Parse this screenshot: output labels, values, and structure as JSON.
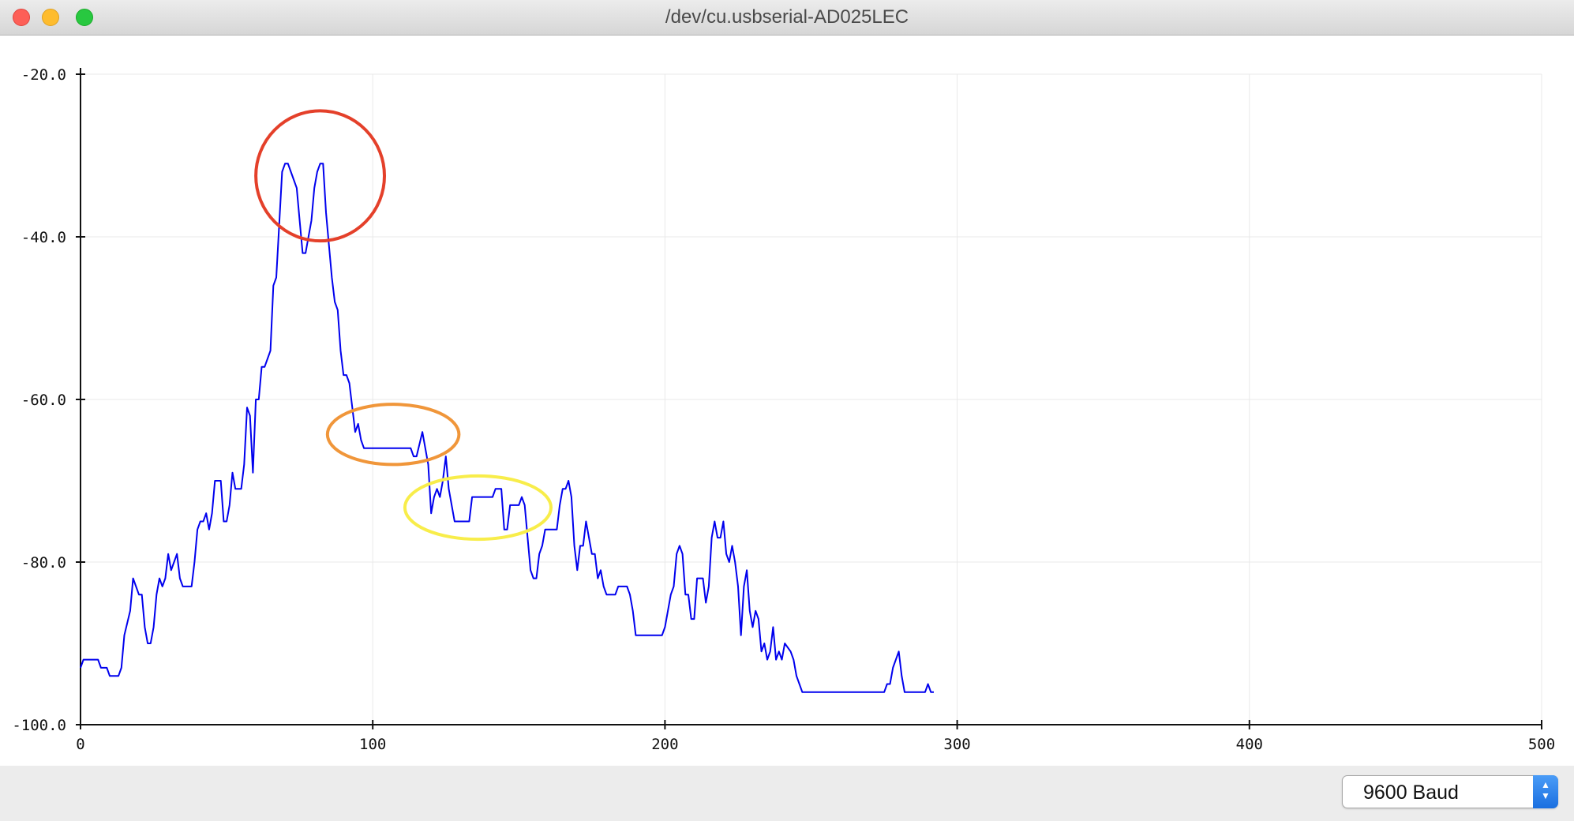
{
  "window": {
    "title": "/dev/cu.usbserial-AD025LEC"
  },
  "footer": {
    "baud_rate": "9600 Baud"
  },
  "icons": {
    "close": "close-dot",
    "minimize": "minimize-dot",
    "zoom": "zoom-dot",
    "stepper": "up-down-chevron-icon"
  },
  "colors": {
    "series": "#0000ee",
    "red_circle": "#e4402a",
    "orange_ellipse": "#f0963a",
    "yellow_ellipse": "#f8ed4a"
  },
  "chart_data": {
    "type": "line",
    "title": "",
    "xlabel": "",
    "ylabel": "",
    "xlim": [
      0,
      500
    ],
    "ylim": [
      -100,
      -20
    ],
    "x_ticks": [
      "0",
      "100",
      "200",
      "300",
      "400",
      "500"
    ],
    "y_ticks": [
      "-20.0",
      "-40.0",
      "-60.0",
      "-80.0",
      "-100.0"
    ],
    "grid": true,
    "series": [
      {
        "points": [
          [
            0,
            -93
          ],
          [
            1,
            -92
          ],
          [
            3,
            -92
          ],
          [
            6,
            -92
          ],
          [
            7,
            -93
          ],
          [
            9,
            -93
          ],
          [
            10,
            -94
          ],
          [
            13,
            -94
          ],
          [
            14,
            -93
          ],
          [
            15,
            -89
          ],
          [
            17,
            -86
          ],
          [
            18,
            -82
          ],
          [
            19,
            -83
          ],
          [
            20,
            -84
          ],
          [
            21,
            -84
          ],
          [
            22,
            -88
          ],
          [
            23,
            -90
          ],
          [
            24,
            -90
          ],
          [
            25,
            -88
          ],
          [
            26,
            -84
          ],
          [
            27,
            -82
          ],
          [
            28,
            -83
          ],
          [
            29,
            -82
          ],
          [
            30,
            -79
          ],
          [
            31,
            -81
          ],
          [
            32,
            -80
          ],
          [
            33,
            -79
          ],
          [
            34,
            -82
          ],
          [
            35,
            -83
          ],
          [
            38,
            -83
          ],
          [
            39,
            -80
          ],
          [
            40,
            -76
          ],
          [
            41,
            -75
          ],
          [
            42,
            -75
          ],
          [
            43,
            -74
          ],
          [
            44,
            -76
          ],
          [
            45,
            -74
          ],
          [
            46,
            -70
          ],
          [
            48,
            -70
          ],
          [
            49,
            -75
          ],
          [
            50,
            -75
          ],
          [
            51,
            -73
          ],
          [
            52,
            -69
          ],
          [
            53,
            -71
          ],
          [
            55,
            -71
          ],
          [
            56,
            -68
          ],
          [
            57,
            -61
          ],
          [
            58,
            -62
          ],
          [
            59,
            -69
          ],
          [
            60,
            -60
          ],
          [
            61,
            -60
          ],
          [
            62,
            -56
          ],
          [
            63,
            -56
          ],
          [
            64,
            -55
          ],
          [
            65,
            -54
          ],
          [
            66,
            -46
          ],
          [
            67,
            -45
          ],
          [
            69,
            -32
          ],
          [
            70,
            -31
          ],
          [
            71,
            -31
          ],
          [
            72,
            -32
          ],
          [
            73,
            -33
          ],
          [
            74,
            -34
          ],
          [
            75,
            -38
          ],
          [
            76,
            -42
          ],
          [
            77,
            -42
          ],
          [
            78,
            -40
          ],
          [
            79,
            -38
          ],
          [
            80,
            -34
          ],
          [
            81,
            -32
          ],
          [
            82,
            -31
          ],
          [
            83,
            -31
          ],
          [
            84,
            -37
          ],
          [
            86,
            -45
          ],
          [
            87,
            -48
          ],
          [
            88,
            -49
          ],
          [
            89,
            -54
          ],
          [
            90,
            -57
          ],
          [
            91,
            -57
          ],
          [
            92,
            -58
          ],
          [
            93,
            -61
          ],
          [
            94,
            -64
          ],
          [
            95,
            -63
          ],
          [
            96,
            -65
          ],
          [
            97,
            -66
          ],
          [
            113,
            -66
          ],
          [
            114,
            -67
          ],
          [
            115,
            -67
          ],
          [
            117,
            -64
          ],
          [
            118,
            -66
          ],
          [
            119,
            -68
          ],
          [
            120,
            -74
          ],
          [
            121,
            -72
          ],
          [
            122,
            -71
          ],
          [
            123,
            -72
          ],
          [
            124,
            -70
          ],
          [
            125,
            -67
          ],
          [
            126,
            -71
          ],
          [
            127,
            -73
          ],
          [
            128,
            -75
          ],
          [
            133,
            -75
          ],
          [
            134,
            -72
          ],
          [
            141,
            -72
          ],
          [
            142,
            -71
          ],
          [
            144,
            -71
          ],
          [
            145,
            -76
          ],
          [
            146,
            -76
          ],
          [
            147,
            -73
          ],
          [
            150,
            -73
          ],
          [
            151,
            -72
          ],
          [
            152,
            -73
          ],
          [
            153,
            -77
          ],
          [
            154,
            -81
          ],
          [
            155,
            -82
          ],
          [
            156,
            -82
          ],
          [
            157,
            -79
          ],
          [
            158,
            -78
          ],
          [
            159,
            -76
          ],
          [
            163,
            -76
          ],
          [
            164,
            -73
          ],
          [
            165,
            -71
          ],
          [
            166,
            -71
          ],
          [
            167,
            -70
          ],
          [
            168,
            -72
          ],
          [
            169,
            -78
          ],
          [
            170,
            -81
          ],
          [
            171,
            -78
          ],
          [
            172,
            -78
          ],
          [
            173,
            -75
          ],
          [
            174,
            -77
          ],
          [
            175,
            -79
          ],
          [
            176,
            -79
          ],
          [
            177,
            -82
          ],
          [
            178,
            -81
          ],
          [
            179,
            -83
          ],
          [
            180,
            -84
          ],
          [
            183,
            -84
          ],
          [
            184,
            -83
          ],
          [
            187,
            -83
          ],
          [
            188,
            -84
          ],
          [
            189,
            -86
          ],
          [
            190,
            -89
          ],
          [
            199,
            -89
          ],
          [
            200,
            -88
          ],
          [
            201,
            -86
          ],
          [
            202,
            -84
          ],
          [
            203,
            -83
          ],
          [
            204,
            -79
          ],
          [
            205,
            -78
          ],
          [
            206,
            -79
          ],
          [
            207,
            -84
          ],
          [
            208,
            -84
          ],
          [
            209,
            -87
          ],
          [
            210,
            -87
          ],
          [
            211,
            -82
          ],
          [
            213,
            -82
          ],
          [
            214,
            -85
          ],
          [
            215,
            -83
          ],
          [
            216,
            -77
          ],
          [
            217,
            -75
          ],
          [
            218,
            -77
          ],
          [
            219,
            -77
          ],
          [
            220,
            -75
          ],
          [
            221,
            -79
          ],
          [
            222,
            -80
          ],
          [
            223,
            -78
          ],
          [
            224,
            -80
          ],
          [
            225,
            -83
          ],
          [
            226,
            -89
          ],
          [
            227,
            -83
          ],
          [
            228,
            -81
          ],
          [
            229,
            -86
          ],
          [
            230,
            -88
          ],
          [
            231,
            -86
          ],
          [
            232,
            -87
          ],
          [
            233,
            -91
          ],
          [
            234,
            -90
          ],
          [
            235,
            -92
          ],
          [
            236,
            -91
          ],
          [
            237,
            -88
          ],
          [
            238,
            -92
          ],
          [
            239,
            -91
          ],
          [
            240,
            -92
          ],
          [
            241,
            -90
          ],
          [
            243,
            -91
          ],
          [
            244,
            -92
          ],
          [
            245,
            -94
          ],
          [
            246,
            -95
          ],
          [
            247,
            -96
          ],
          [
            275,
            -96
          ],
          [
            276,
            -95
          ],
          [
            277,
            -95
          ],
          [
            278,
            -93
          ],
          [
            280,
            -91
          ],
          [
            281,
            -94
          ],
          [
            282,
            -96
          ],
          [
            289,
            -96
          ],
          [
            290,
            -95
          ],
          [
            291,
            -96
          ],
          [
            292,
            -96
          ]
        ]
      }
    ],
    "annotations": [
      {
        "shape": "circle",
        "color": "red",
        "cx": 82,
        "cy": -32.5,
        "rx": 22,
        "ry": 8
      },
      {
        "shape": "ellipse",
        "color": "orange",
        "cx": 107,
        "cy": -64.3,
        "rx": 22.5,
        "ry": 3.7
      },
      {
        "shape": "ellipse",
        "color": "yellow",
        "cx": 136,
        "cy": -73.3,
        "rx": 25,
        "ry": 3.9
      }
    ]
  }
}
